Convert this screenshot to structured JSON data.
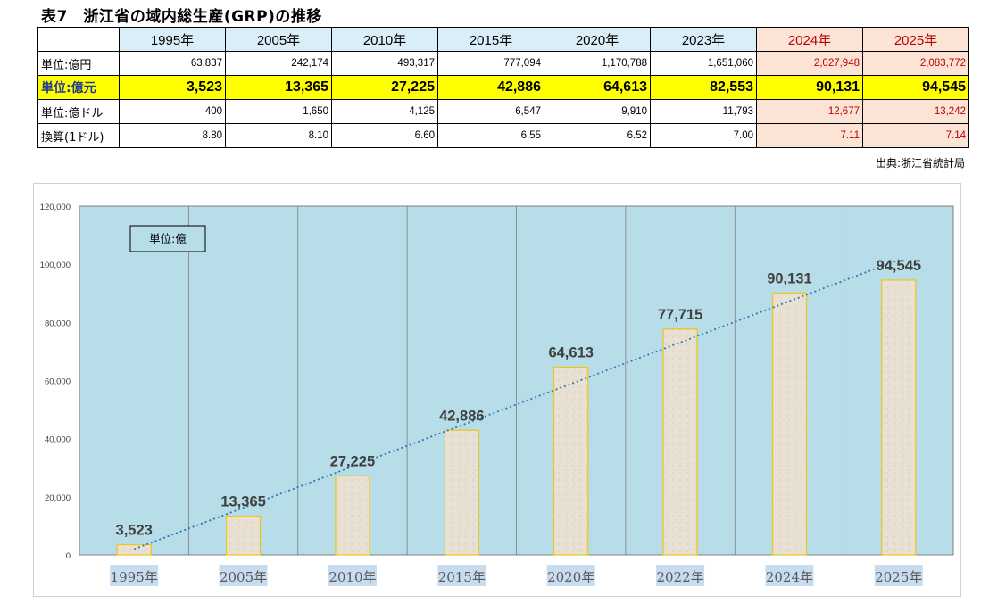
{
  "title": "表7　浙江省の域内総生産(GRP)の推移",
  "table": {
    "years": [
      "1995年",
      "2005年",
      "2010年",
      "2015年",
      "2020年",
      "2023年",
      "2024年",
      "2025年"
    ],
    "rows": [
      {
        "label": "単位:億円",
        "values": [
          "63,837",
          "242,174",
          "493,317",
          "777,094",
          "1,170,788",
          "1,651,060",
          "2,027,948",
          "2,083,772"
        ]
      },
      {
        "label": "単位:億元",
        "values": [
          "3,523",
          "13,365",
          "27,225",
          "42,886",
          "64,613",
          "82,553",
          "90,131",
          "94,545"
        ]
      },
      {
        "label": "単位:億ドル",
        "values": [
          "400",
          "1,650",
          "4,125",
          "6,547",
          "9,910",
          "11,793",
          "12,677",
          "13,242"
        ]
      },
      {
        "label": "換算(1ドル)",
        "values": [
          "8.80",
          "8.10",
          "6.60",
          "6.55",
          "6.52",
          "7.00",
          "7.11",
          "7.14"
        ]
      }
    ]
  },
  "source": "出典:浙江省統計局",
  "colors": {
    "plot_bg": "#b7dde8",
    "bar_fill": "#e8e0d2",
    "bar_border": "#f0c419",
    "trend": "#2e75b6",
    "forecast_bg": "#fbe4d5",
    "forecast_text": "#c00000",
    "highlight": "#ffff00"
  },
  "chart_data": {
    "type": "bar",
    "categories": [
      "1995年",
      "2005年",
      "2010年",
      "2015年",
      "2020年",
      "2022年",
      "2024年",
      "2025年"
    ],
    "values": [
      3523,
      13365,
      27225,
      42886,
      64613,
      77715,
      90131,
      94545
    ],
    "data_labels": [
      "3,523",
      "13,365",
      "27,225",
      "42,886",
      "64,613",
      "77,715",
      "90,131",
      "94,545"
    ],
    "unit_label": "単位:億",
    "ylim": [
      0,
      120000
    ],
    "yticks": [
      0,
      20000,
      40000,
      60000,
      80000,
      100000,
      120000
    ],
    "ytick_labels": [
      "0",
      "20,000",
      "40,000",
      "60,000",
      "80,000",
      "100,000",
      "120,000"
    ],
    "trendline": "linear",
    "xlabel": "",
    "ylabel": "",
    "title": ""
  }
}
